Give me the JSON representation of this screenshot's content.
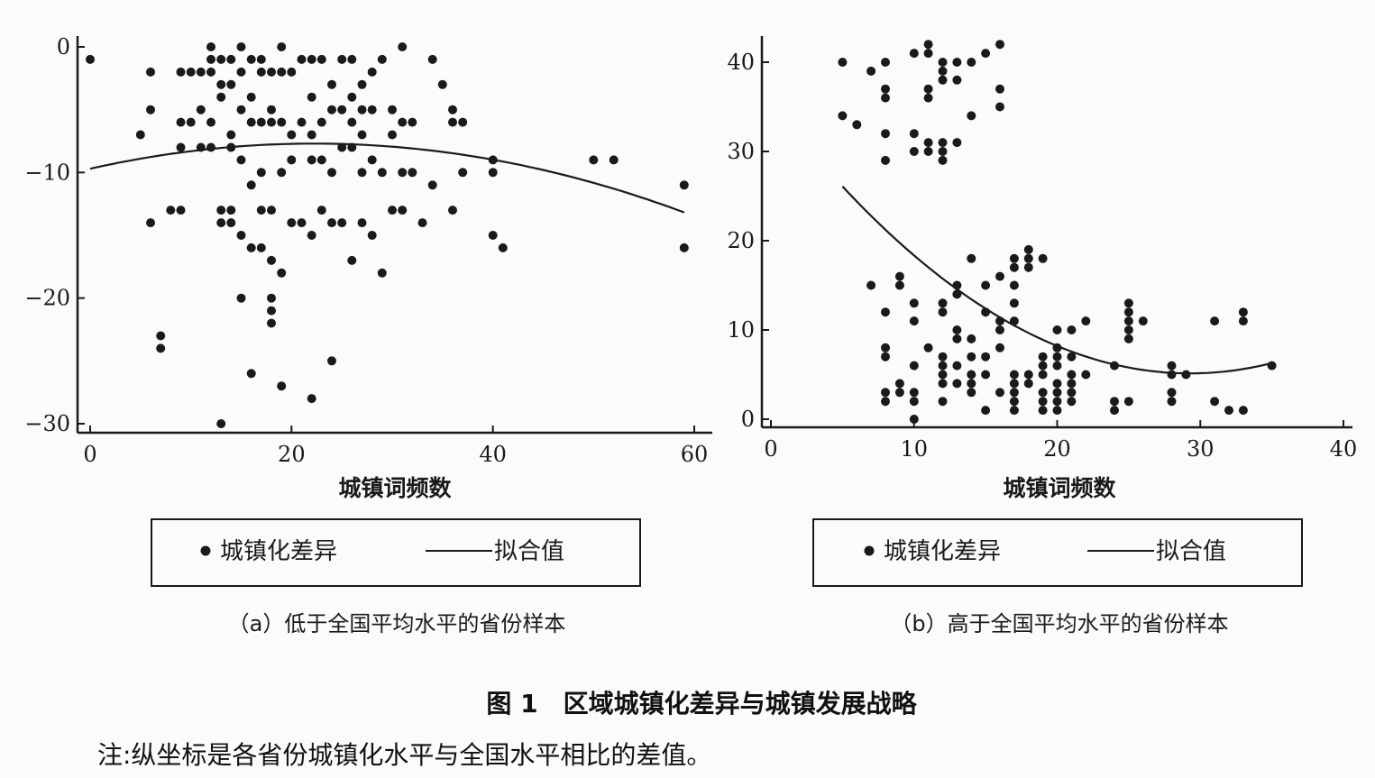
{
  "figure": {
    "title": "图 1　区域城镇化差异与城镇发展战略",
    "note": "注:纵坐标是各省份城镇化水平与全国水平相比的差值。"
  },
  "colors": {
    "ink": "#1a1a1a",
    "background": "#fbfbfb"
  },
  "chart_data": [
    {
      "id": "a",
      "type": "scatter",
      "caption": "（a）低于全国平均水平的省份样本",
      "xlabel": "城镇词频数",
      "ylabel": "",
      "xlim": [
        -1,
        62
      ],
      "ylim": [
        -31,
        1
      ],
      "xticks": [
        0,
        20,
        40,
        60
      ],
      "yticks": [
        0,
        -10,
        -20,
        -30
      ],
      "ytick_labels": [
        "0",
        "−10",
        "−20",
        "−30"
      ],
      "legend": {
        "placement": "bottom",
        "scatter_label": "城镇化差异",
        "line_label": "拟合值"
      },
      "fit": {
        "type": "quadratic",
        "x_range": [
          0,
          59
        ],
        "a": -0.00405,
        "b": 0.18,
        "c": -9.7
      },
      "points": [
        [
          0,
          -1
        ],
        [
          6,
          -2
        ],
        [
          6,
          -5
        ],
        [
          5,
          -7
        ],
        [
          6,
          -14
        ],
        [
          7,
          -23
        ],
        [
          7,
          -24
        ],
        [
          8,
          -13
        ],
        [
          9,
          -13
        ],
        [
          9,
          -8
        ],
        [
          9,
          -6
        ],
        [
          9,
          -2
        ],
        [
          10,
          -6
        ],
        [
          10,
          -2
        ],
        [
          11,
          -2
        ],
        [
          11,
          -5
        ],
        [
          11,
          -8
        ],
        [
          12,
          -1
        ],
        [
          12,
          -2
        ],
        [
          12,
          -6
        ],
        [
          12,
          -8
        ],
        [
          12,
          0
        ],
        [
          13,
          -1
        ],
        [
          13,
          -3
        ],
        [
          13,
          -4
        ],
        [
          13,
          -13
        ],
        [
          13,
          -14
        ],
        [
          13,
          -30
        ],
        [
          14,
          -1
        ],
        [
          14,
          -3
        ],
        [
          14,
          -7
        ],
        [
          14,
          -8
        ],
        [
          14,
          -13
        ],
        [
          14,
          -14
        ],
        [
          15,
          0
        ],
        [
          15,
          -2
        ],
        [
          15,
          -5
        ],
        [
          15,
          -9
        ],
        [
          15,
          -15
        ],
        [
          15,
          -20
        ],
        [
          16,
          -1
        ],
        [
          16,
          -4
        ],
        [
          16,
          -6
        ],
        [
          16,
          -11
        ],
        [
          16,
          -16
        ],
        [
          16,
          -26
        ],
        [
          17,
          -1
        ],
        [
          17,
          -2
        ],
        [
          17,
          -6
        ],
        [
          17,
          -10
        ],
        [
          17,
          -13
        ],
        [
          17,
          -16
        ],
        [
          18,
          -2
        ],
        [
          18,
          -5
        ],
        [
          18,
          -6
        ],
        [
          18,
          -13
        ],
        [
          18,
          -17
        ],
        [
          18,
          -20
        ],
        [
          18,
          -21
        ],
        [
          18,
          -22
        ],
        [
          19,
          0
        ],
        [
          19,
          -2
        ],
        [
          19,
          -6
        ],
        [
          19,
          -10
        ],
        [
          19,
          -18
        ],
        [
          19,
          -27
        ],
        [
          20,
          -2
        ],
        [
          20,
          -7
        ],
        [
          20,
          -9
        ],
        [
          20,
          -14
        ],
        [
          21,
          -1
        ],
        [
          21,
          -6
        ],
        [
          21,
          -14
        ],
        [
          22,
          -1
        ],
        [
          22,
          -4
        ],
        [
          22,
          -7
        ],
        [
          22,
          -9
        ],
        [
          22,
          -15
        ],
        [
          22,
          -28
        ],
        [
          23,
          -1
        ],
        [
          23,
          -6
        ],
        [
          23,
          -9
        ],
        [
          23,
          -13
        ],
        [
          24,
          -3
        ],
        [
          24,
          -5
        ],
        [
          24,
          -10
        ],
        [
          24,
          -14
        ],
        [
          24,
          -25
        ],
        [
          25,
          -1
        ],
        [
          25,
          -5
        ],
        [
          25,
          -8
        ],
        [
          25,
          -14
        ],
        [
          26,
          -1
        ],
        [
          26,
          -4
        ],
        [
          26,
          -6
        ],
        [
          26,
          -8
        ],
        [
          26,
          -17
        ],
        [
          27,
          -3
        ],
        [
          27,
          -5
        ],
        [
          27,
          -7
        ],
        [
          27,
          -10
        ],
        [
          27,
          -14
        ],
        [
          28,
          -2
        ],
        [
          28,
          -5
        ],
        [
          28,
          -9
        ],
        [
          28,
          -15
        ],
        [
          29,
          -1
        ],
        [
          29,
          -10
        ],
        [
          29,
          -18
        ],
        [
          30,
          -5
        ],
        [
          30,
          -7
        ],
        [
          30,
          -13
        ],
        [
          31,
          0
        ],
        [
          31,
          -6
        ],
        [
          31,
          -10
        ],
        [
          31,
          -13
        ],
        [
          32,
          -6
        ],
        [
          32,
          -10
        ],
        [
          33,
          -14
        ],
        [
          34,
          -1
        ],
        [
          34,
          -11
        ],
        [
          35,
          -3
        ],
        [
          36,
          -5
        ],
        [
          36,
          -6
        ],
        [
          36,
          -13
        ],
        [
          37,
          -6
        ],
        [
          37,
          -10
        ],
        [
          40,
          -9
        ],
        [
          40,
          -10
        ],
        [
          40,
          -15
        ],
        [
          41,
          -16
        ],
        [
          50,
          -9
        ],
        [
          52,
          -9
        ],
        [
          59,
          -11
        ],
        [
          59,
          -16
        ]
      ]
    },
    {
      "id": "b",
      "type": "scatter",
      "caption": "（b）高于全国平均水平的省份样本",
      "xlabel": "城镇词频数",
      "ylabel": "",
      "xlim": [
        0,
        40.5
      ],
      "ylim": [
        -1,
        43
      ],
      "xticks": [
        0,
        10,
        20,
        30,
        40
      ],
      "yticks": [
        0,
        10,
        20,
        30,
        40
      ],
      "ytick_labels": [
        "0",
        "10",
        "20",
        "30",
        "40"
      ],
      "legend": {
        "placement": "bottom",
        "scatter_label": "城镇化差异",
        "line_label": "拟合值"
      },
      "fit": {
        "type": "quadratic",
        "x_range": [
          5,
          35
        ],
        "a": 0.0355,
        "b": -2.08,
        "c": 35.6
      },
      "points": [
        [
          5,
          40
        ],
        [
          5,
          34
        ],
        [
          6,
          33
        ],
        [
          7,
          39
        ],
        [
          7,
          15
        ],
        [
          8,
          40
        ],
        [
          8,
          37
        ],
        [
          8,
          36
        ],
        [
          8,
          32
        ],
        [
          8,
          29
        ],
        [
          8,
          12
        ],
        [
          8,
          8
        ],
        [
          8,
          7
        ],
        [
          8,
          3
        ],
        [
          8,
          2
        ],
        [
          9,
          16
        ],
        [
          9,
          15
        ],
        [
          9,
          4
        ],
        [
          9,
          3
        ],
        [
          10,
          41
        ],
        [
          10,
          32
        ],
        [
          10,
          30
        ],
        [
          10,
          13
        ],
        [
          10,
          11
        ],
        [
          10,
          6
        ],
        [
          10,
          3
        ],
        [
          10,
          2
        ],
        [
          10,
          0
        ],
        [
          11,
          42
        ],
        [
          11,
          41
        ],
        [
          11,
          37
        ],
        [
          11,
          36
        ],
        [
          11,
          31
        ],
        [
          11,
          30
        ],
        [
          11,
          8
        ],
        [
          12,
          40
        ],
        [
          12,
          39
        ],
        [
          12,
          38
        ],
        [
          12,
          31
        ],
        [
          12,
          30
        ],
        [
          12,
          29
        ],
        [
          12,
          13
        ],
        [
          12,
          12
        ],
        [
          12,
          7
        ],
        [
          12,
          6
        ],
        [
          12,
          5
        ],
        [
          12,
          4
        ],
        [
          12,
          2
        ],
        [
          13,
          40
        ],
        [
          13,
          38
        ],
        [
          13,
          31
        ],
        [
          13,
          15
        ],
        [
          13,
          14
        ],
        [
          13,
          10
        ],
        [
          13,
          9
        ],
        [
          13,
          6
        ],
        [
          13,
          4
        ],
        [
          14,
          40
        ],
        [
          14,
          34
        ],
        [
          14,
          18
        ],
        [
          14,
          9
        ],
        [
          14,
          7
        ],
        [
          14,
          5
        ],
        [
          14,
          4
        ],
        [
          14,
          3
        ],
        [
          15,
          41
        ],
        [
          15,
          15
        ],
        [
          15,
          12
        ],
        [
          15,
          7
        ],
        [
          15,
          5
        ],
        [
          15,
          1
        ],
        [
          16,
          42
        ],
        [
          16,
          37
        ],
        [
          16,
          35
        ],
        [
          16,
          16
        ],
        [
          16,
          11
        ],
        [
          16,
          10
        ],
        [
          16,
          8
        ],
        [
          16,
          3
        ],
        [
          17,
          18
        ],
        [
          17,
          17
        ],
        [
          17,
          15
        ],
        [
          17,
          13
        ],
        [
          17,
          11
        ],
        [
          17,
          5
        ],
        [
          17,
          4
        ],
        [
          17,
          3
        ],
        [
          17,
          2
        ],
        [
          17,
          1
        ],
        [
          18,
          19
        ],
        [
          18,
          18
        ],
        [
          18,
          17
        ],
        [
          18,
          5
        ],
        [
          18,
          4
        ],
        [
          19,
          18
        ],
        [
          19,
          7
        ],
        [
          19,
          6
        ],
        [
          19,
          5
        ],
        [
          19,
          3
        ],
        [
          19,
          2
        ],
        [
          19,
          1
        ],
        [
          20,
          10
        ],
        [
          20,
          8
        ],
        [
          20,
          7
        ],
        [
          20,
          6
        ],
        [
          20,
          4
        ],
        [
          20,
          3
        ],
        [
          20,
          2
        ],
        [
          20,
          1
        ],
        [
          21,
          10
        ],
        [
          21,
          7
        ],
        [
          21,
          5
        ],
        [
          21,
          4
        ],
        [
          21,
          3
        ],
        [
          21,
          2
        ],
        [
          22,
          11
        ],
        [
          22,
          5
        ],
        [
          24,
          6
        ],
        [
          24,
          2
        ],
        [
          24,
          1
        ],
        [
          25,
          13
        ],
        [
          25,
          12
        ],
        [
          25,
          11
        ],
        [
          25,
          10
        ],
        [
          25,
          9
        ],
        [
          25,
          2
        ],
        [
          26,
          11
        ],
        [
          28,
          6
        ],
        [
          28,
          5
        ],
        [
          28,
          3
        ],
        [
          28,
          2
        ],
        [
          29,
          5
        ],
        [
          31,
          11
        ],
        [
          31,
          2
        ],
        [
          32,
          1
        ],
        [
          33,
          12
        ],
        [
          33,
          11
        ],
        [
          33,
          1
        ],
        [
          35,
          6
        ]
      ]
    }
  ]
}
